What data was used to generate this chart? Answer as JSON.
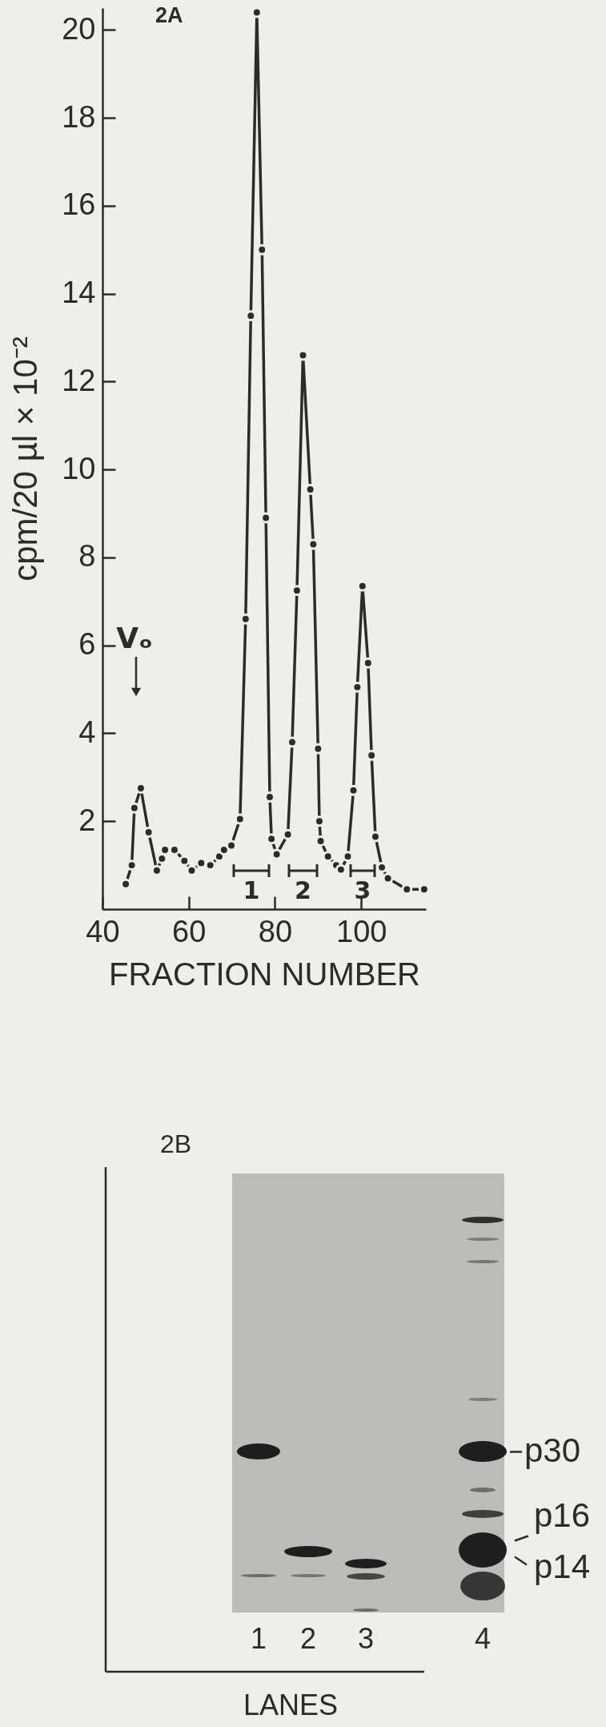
{
  "chart_data": [
    {
      "type": "line",
      "title": "2A",
      "xlabel": "FRACTION NUMBER",
      "ylabel": "cpm/20 µl × 10⁻²",
      "x": [
        45.4,
        46.8,
        47.4,
        48.9,
        50.7,
        52.6,
        53.8,
        54.5,
        56.7,
        59.0,
        60.7,
        62.9,
        65.0,
        67.1,
        68.2,
        69.9,
        71.9,
        73.2,
        74.4,
        75.8,
        77.0,
        77.9,
        78.8,
        79.2,
        80.4,
        83.0,
        84.0,
        85.1,
        86.5,
        88.2,
        88.9,
        90.0,
        90.3,
        90.6,
        92.3,
        94.2,
        95.3,
        96.9,
        98.2,
        99.1,
        100.3,
        101.6,
        102.4,
        103.3,
        104.8,
        106.2,
        110.6,
        114.6
      ],
      "values": [
        0.57,
        1.0,
        2.3,
        2.75,
        1.75,
        0.88,
        1.15,
        1.35,
        1.35,
        1.1,
        0.88,
        1.05,
        1.0,
        1.2,
        1.35,
        1.45,
        2.05,
        6.6,
        13.5,
        20.4,
        15.0,
        8.9,
        2.55,
        1.6,
        1.25,
        1.7,
        3.8,
        7.25,
        12.6,
        9.55,
        8.3,
        3.65,
        2.0,
        1.55,
        1.2,
        1.0,
        0.9,
        1.2,
        2.7,
        5.05,
        7.35,
        5.6,
        3.5,
        1.65,
        0.95,
        0.7,
        0.45,
        0.45
      ],
      "color": "#2b2b2b",
      "xlim": [
        40,
        115
      ],
      "ylim": [
        0,
        20.5
      ],
      "xticks": [
        40,
        60,
        80,
        100
      ],
      "yticks": [
        2,
        4,
        6,
        8,
        10,
        12,
        14,
        16,
        18,
        20
      ],
      "marker": "circle",
      "line_style": "solid",
      "annotations": [
        "Vₒ",
        "1",
        "2",
        "3"
      ]
    },
    {
      "type": "other",
      "title": "2B",
      "annotations": [
        "1",
        "2",
        "3",
        "4",
        "LANES",
        "p30",
        "p16",
        "p14"
      ]
    }
  ]
}
